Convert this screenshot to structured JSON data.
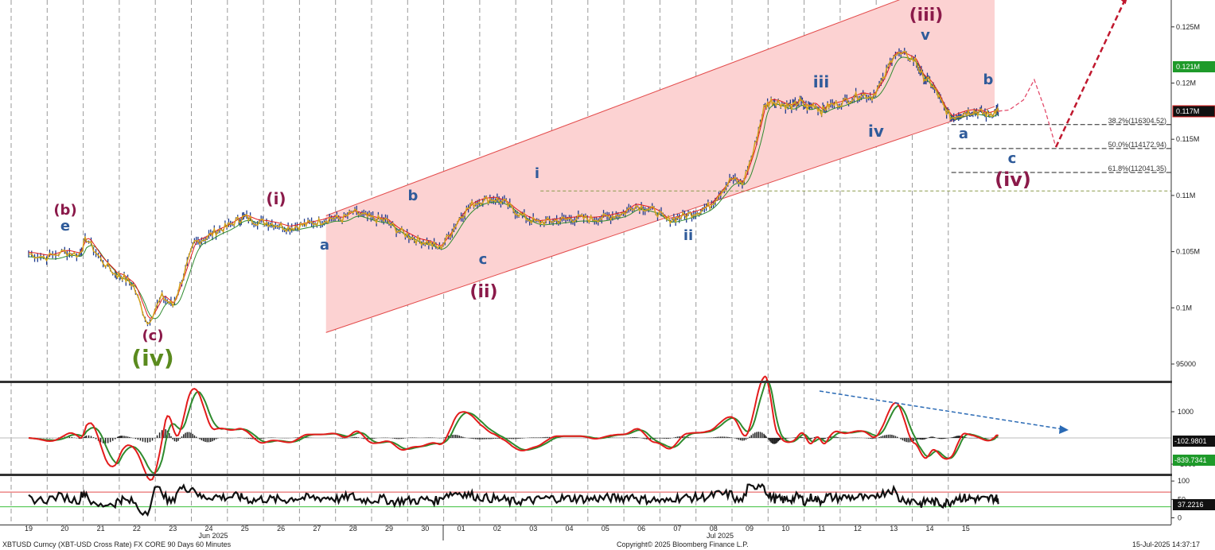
{
  "footer": {
    "security": "XBTUSD Curncy (XBT-USD Cross Rate) FX CORE 90 Days 60 Minutes",
    "copyright": "Copyright© 2025 Bloomberg Finance L.P.",
    "timestamp": "15-Jul-2025 14:37:17"
  },
  "chart_data": [
    {
      "type": "line",
      "panel": "price",
      "x_tick_labels": [
        "19",
        "20",
        "21",
        "22",
        "23",
        "24",
        "25",
        "26",
        "27",
        "28",
        "29",
        "30",
        "01",
        "02",
        "03",
        "04",
        "05",
        "06",
        "07",
        "08",
        "09",
        "10",
        "11",
        "12",
        "13",
        "14",
        "15"
      ],
      "month_labels": [
        "Jun 2025",
        "Jul 2025"
      ],
      "y_ticks": [
        95000,
        100000,
        105000,
        110000,
        115000,
        120000,
        125000
      ],
      "y_tick_labels": [
        "95000",
        "0.1M",
        "0.105M",
        "0.11M",
        "0.115M",
        "0.12M",
        "0.125M"
      ],
      "ylim": [
        92000,
        128000
      ],
      "series": [
        {
          "color": "#1f3b8f",
          "x": [
            0,
            0.5,
            1,
            1.4,
            1.6,
            2,
            2.4,
            2.6,
            2.9,
            3.3,
            3.7,
            4,
            4.3,
            4.6,
            4.9,
            5.2,
            5.5,
            5.8,
            6,
            6.3,
            6.6,
            6.9,
            7.2,
            7.5,
            7.8,
            8.1,
            8.4,
            8.7,
            9,
            9.3,
            9.6,
            9.9,
            10.2,
            10.5,
            10.8,
            11.1,
            11.4,
            11.7,
            12,
            12.3,
            12.6,
            12.9,
            13.2,
            13.5,
            13.8,
            14.1,
            14.4,
            14.7,
            15,
            15.3,
            15.6,
            15.9,
            16.2,
            16.5,
            16.8,
            17.1,
            17.4,
            17.7,
            18,
            18.3,
            18.6,
            18.9,
            19.2,
            19.5,
            19.8,
            20.1,
            20.4,
            20.6,
            20.8,
            21,
            21.2,
            21.4,
            21.6,
            21.8,
            22,
            22.2,
            22.5,
            22.8,
            23.1,
            23.4,
            23.7,
            24,
            24.3,
            24.6,
            24.8,
            25,
            25.2,
            25.4,
            25.6,
            25.8,
            26,
            26.2,
            26.4,
            26.6,
            26.8,
            26.9
          ],
          "values": [
            104800,
            104500,
            105000,
            104700,
            106200,
            104300,
            103000,
            102800,
            102000,
            98600,
            101000,
            100200,
            102900,
            105800,
            106200,
            106800,
            107200,
            107800,
            108100,
            107700,
            107600,
            107400,
            107100,
            107300,
            107500,
            107700,
            108000,
            107900,
            108500,
            108200,
            107900,
            107800,
            107000,
            106500,
            106000,
            105800,
            105300,
            106600,
            108200,
            109200,
            109600,
            109700,
            109400,
            108600,
            108000,
            107600,
            107700,
            107800,
            107900,
            108000,
            107900,
            108000,
            108200,
            108400,
            109100,
            108900,
            108600,
            107800,
            108000,
            108300,
            108600,
            109100,
            110300,
            111500,
            111000,
            113800,
            117800,
            118400,
            118300,
            118000,
            117900,
            118400,
            117800,
            118100,
            117500,
            118000,
            118200,
            118600,
            119000,
            118800,
            120200,
            122600,
            122500,
            122000,
            120600,
            120100,
            119100,
            117800,
            116900,
            117200,
            117400,
            117500,
            117400,
            117200,
            117400,
            117500
          ]
        }
      ],
      "wave_labels": [
        "(b)",
        "e",
        "(c)",
        "(iv)",
        "(i)",
        "a",
        "b",
        "c",
        "(ii)",
        "i",
        "ii",
        "iii",
        "iv",
        "(iii)",
        "v",
        "a",
        "b",
        "c",
        "(iv)"
      ],
      "fibonacci": [
        {
          "label": "38.2%(116304.52)",
          "value": 116304.52
        },
        {
          "label": "50.0%(114172.94)",
          "value": 114172.94
        },
        {
          "label": "61.8%(112041.35)",
          "value": 112041.35
        }
      ],
      "reference_level": 110400,
      "last_price_badges": [
        "0.121M",
        "0.117M"
      ],
      "channel": {
        "upper": [
          [
            8.25,
            108200
          ],
          [
            26.8,
            130600
          ]
        ],
        "lower": [
          [
            8.25,
            97800
          ],
          [
            26.8,
            117900
          ]
        ]
      },
      "forecast_path": {
        "x": [
          26.9,
          27.2,
          27.6,
          27.9,
          28.2,
          28.5,
          30.5
        ],
        "values": [
          117500,
          117600,
          118500,
          120300,
          117600,
          114300,
          127800
        ]
      }
    },
    {
      "type": "line",
      "panel": "macd",
      "y_ticks": [
        1000,
        -1000
      ],
      "y_tick_labels": [
        "1000",
        "-1000"
      ],
      "ylim": [
        -1700,
        2600
      ],
      "series_values": [
        -102.9801,
        -839.7341
      ],
      "badges": [
        "-102.9801",
        "-839.7341"
      ]
    },
    {
      "type": "line",
      "panel": "rsi",
      "y_ticks": [
        100,
        50,
        0
      ],
      "y_tick_labels": [
        "100",
        "50",
        "0"
      ],
      "ylim": [
        -8,
        108
      ],
      "reference_lines": [
        70,
        30
      ],
      "last_value": 37.2216,
      "badges": [
        "37.2216"
      ]
    }
  ]
}
